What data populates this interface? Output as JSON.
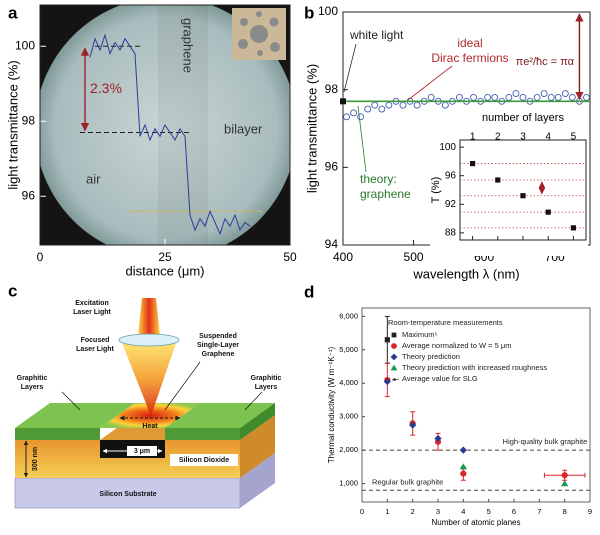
{
  "chart_data": [
    {
      "panel": "a",
      "type": "line",
      "xlabel": "distance (μm)",
      "ylabel": "light transmittance (%)",
      "xlim": [
        0,
        50
      ],
      "ylim": [
        94.7,
        101.1
      ],
      "xticks": [
        0,
        25,
        50
      ],
      "yticks": [
        96,
        98,
        100
      ],
      "series": [
        {
          "color": "#2c3e9a",
          "x": [
            10,
            11,
            12,
            13,
            14,
            15,
            16,
            17,
            18,
            19,
            20,
            21,
            22,
            23,
            24,
            25,
            26,
            27,
            28,
            29,
            30,
            31,
            32,
            33,
            34,
            35,
            36,
            37,
            38,
            39,
            40,
            41,
            42
          ],
          "values": [
            99.7,
            100.2,
            99.9,
            100.3,
            99.8,
            100.1,
            99.9,
            100.2,
            100.0,
            99.8,
            97.6,
            97.9,
            97.5,
            97.8,
            97.6,
            97.9,
            97.7,
            97.5,
            97.8,
            97.6,
            95.5,
            95.1,
            95.4,
            95.2,
            95.6,
            95.3,
            95.0,
            95.4,
            95.2,
            95.5,
            95.1,
            95.3,
            95.2
          ]
        }
      ],
      "reference_lines": [
        {
          "y": 100,
          "x": [
            11,
            20
          ],
          "color": "#222222"
        },
        {
          "y": 97.7,
          "x": [
            8,
            30
          ],
          "color": "#222222"
        },
        {
          "y": 95.6,
          "x": [
            18,
            45
          ],
          "color": "#d8b23a"
        }
      ],
      "annotations": [
        {
          "text": "2.3%",
          "x": 9,
          "y": [
            100,
            97.7
          ],
          "color": "#a0202a"
        },
        {
          "text": "graphene",
          "color": "#333333"
        },
        {
          "text": "bilayer",
          "color": "#333333"
        },
        {
          "text": "air",
          "color": "#333333"
        }
      ]
    },
    {
      "panel": "b",
      "type": "scatter",
      "xlabel": "wavelength λ (nm)",
      "ylabel": "light transmittance (%)",
      "xlim": [
        400,
        750
      ],
      "ylim": [
        94,
        100
      ],
      "xticks": [
        400,
        500,
        600,
        700
      ],
      "yticks": [
        94,
        96,
        98,
        100
      ],
      "series": [
        {
          "marker": "circle-open",
          "color": "#3d5bb0",
          "x": [
            405,
            415,
            425,
            435,
            445,
            455,
            465,
            475,
            485,
            495,
            505,
            515,
            525,
            535,
            545,
            555,
            565,
            575,
            585,
            595,
            605,
            615,
            625,
            635,
            645,
            655,
            665,
            675,
            685,
            695,
            705,
            715,
            725,
            735,
            745
          ],
          "values": [
            97.3,
            97.4,
            97.3,
            97.5,
            97.6,
            97.5,
            97.6,
            97.7,
            97.6,
            97.7,
            97.6,
            97.7,
            97.8,
            97.7,
            97.6,
            97.7,
            97.8,
            97.7,
            97.8,
            97.7,
            97.8,
            97.8,
            97.7,
            97.8,
            97.9,
            97.8,
            97.7,
            97.8,
            97.9,
            97.8,
            97.8,
            97.9,
            97.8,
            97.7,
            97.8
          ]
        },
        {
          "marker": "line",
          "color": "#3a9a3a",
          "x": [
            400,
            750
          ],
          "values": [
            97.7,
            97.7
          ]
        },
        {
          "marker": "square",
          "color": "#111111",
          "x": [
            400
          ],
          "values": [
            97.7
          ]
        }
      ],
      "annotations": [
        {
          "text": [
            "white light"
          ],
          "color": "#222222"
        },
        {
          "text": [
            "ideal",
            "Dirac fermions"
          ],
          "color": "#b02a2a"
        },
        {
          "text": [
            "theory:",
            "graphene"
          ],
          "color": "#2a7a2a"
        },
        {
          "text": [
            "πe²/ħc = πα"
          ],
          "color": "#7a1a1a",
          "x": 735,
          "y": [
            100,
            97.7
          ]
        }
      ]
    },
    {
      "type": "scatter",
      "title": "number of layers",
      "ylabel": "T (%)",
      "xlim": [
        0.5,
        5.5
      ],
      "ylim": [
        87,
        101
      ],
      "xticks": [
        1,
        2,
        3,
        4,
        5
      ],
      "yticks": [
        88,
        92,
        96,
        100
      ],
      "guide_lines": true,
      "guide_color": "#d04040",
      "series": [
        {
          "marker": "square",
          "color": "#111111",
          "x": [
            1,
            2,
            3,
            4,
            5
          ],
          "values": [
            97.7,
            95.4,
            93.2,
            90.9,
            88.7
          ]
        }
      ]
    },
    {
      "panel": "d",
      "type": "scatter",
      "xlabel": "Number of atomic planes",
      "ylabel": "Thermal conductivity (W m⁻¹K⁻¹)",
      "xlim": [
        0,
        9
      ],
      "ylim": [
        450,
        6250
      ],
      "xticks": [
        0,
        1,
        2,
        3,
        4,
        5,
        6,
        7,
        8,
        9
      ],
      "yticks": [
        {
          "value": 1000,
          "label": "1,000"
        },
        {
          "value": 2000,
          "label": "2,000"
        },
        {
          "value": 3000,
          "label": "3,000"
        },
        {
          "value": 4000,
          "label": "4,000"
        },
        {
          "value": 5000,
          "label": "5,000"
        },
        {
          "value": 6000,
          "label": "6,000"
        }
      ],
      "legend": "upper left",
      "legend_title": "Room-temperature measurements",
      "series": [
        {
          "name": "Maximum⁵",
          "marker": "square",
          "color": "#222222",
          "x": [
            1
          ],
          "values": [
            5300
          ],
          "errors": [
            700
          ]
        },
        {
          "name": "Average normalized to W = 5 μm",
          "marker": "circle",
          "color": "#d9262c",
          "x": [
            1,
            2,
            3,
            4,
            8
          ],
          "values": [
            4100,
            2800,
            2250,
            1300,
            1250
          ],
          "errors": [
            500,
            350,
            250,
            200,
            150
          ],
          "x_errors": [
            null,
            null,
            null,
            null,
            0.8
          ]
        },
        {
          "name": "Theory prediction",
          "marker": "diamond",
          "color": "#2b3990",
          "x": [
            1,
            2,
            3,
            4
          ],
          "values": [
            4050,
            2750,
            2350,
            2000
          ]
        },
        {
          "name": "Theory prediction with increased roughness",
          "marker": "triangle",
          "color": "#1a9850",
          "x": [
            4,
            8
          ],
          "values": [
            1500,
            1000
          ]
        }
      ],
      "reference_lines": [
        {
          "y": 2000,
          "label": "High-quality bulk graphite",
          "color": "#444444"
        },
        {
          "y": 800,
          "label": "Regular bulk graphite",
          "color": "#444444"
        }
      ],
      "annotations": [
        {
          "text": "Average value for SLG",
          "color": "#222222"
        }
      ]
    }
  ],
  "diagram": {
    "panel": "c",
    "labels": {
      "excitation": [
        "Excitation",
        "Laser Light"
      ],
      "focused": [
        "Focused",
        "Laser Light"
      ],
      "suspended": [
        "Suspended",
        "Single-Layer",
        "Graphene"
      ],
      "graphitic_left": [
        "Graphitic",
        "Layers"
      ],
      "graphitic_right": [
        "Graphitic",
        "Layers"
      ],
      "heat": "Heat",
      "width": "3 μm",
      "depth": "300 nm",
      "oxide": "Silicon Dioxide",
      "substrate": "Silicon Substrate"
    }
  }
}
